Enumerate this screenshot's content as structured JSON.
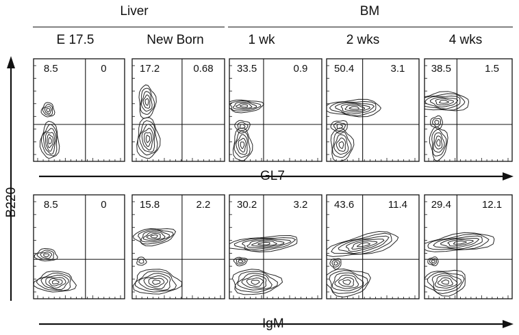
{
  "groups": [
    {
      "label": "Liver"
    },
    {
      "label": "BM"
    }
  ],
  "columns": [
    {
      "label": "E 17.5"
    },
    {
      "label": "New Born"
    },
    {
      "label": "1 wk"
    },
    {
      "label": "2 wks"
    },
    {
      "label": "4 wks"
    }
  ],
  "rows": [
    {
      "x_marker": "GL7",
      "quadrants": [
        {
          "ul": "8.5",
          "ur": "0"
        },
        {
          "ul": "17.2",
          "ur": "0.68"
        },
        {
          "ul": "33.5",
          "ur": "0.9"
        },
        {
          "ul": "50.4",
          "ur": "3.1"
        },
        {
          "ul": "38.5",
          "ur": "1.5"
        }
      ]
    },
    {
      "x_marker": "IgM",
      "quadrants": [
        {
          "ul": "8.5",
          "ur": "0"
        },
        {
          "ul": "15.8",
          "ur": "2.2"
        },
        {
          "ul": "30.2",
          "ur": "3.2"
        },
        {
          "ul": "43.6",
          "ur": "11.4"
        },
        {
          "ul": "29.4",
          "ur": "12.1"
        }
      ]
    }
  ],
  "y_marker": "B220"
}
